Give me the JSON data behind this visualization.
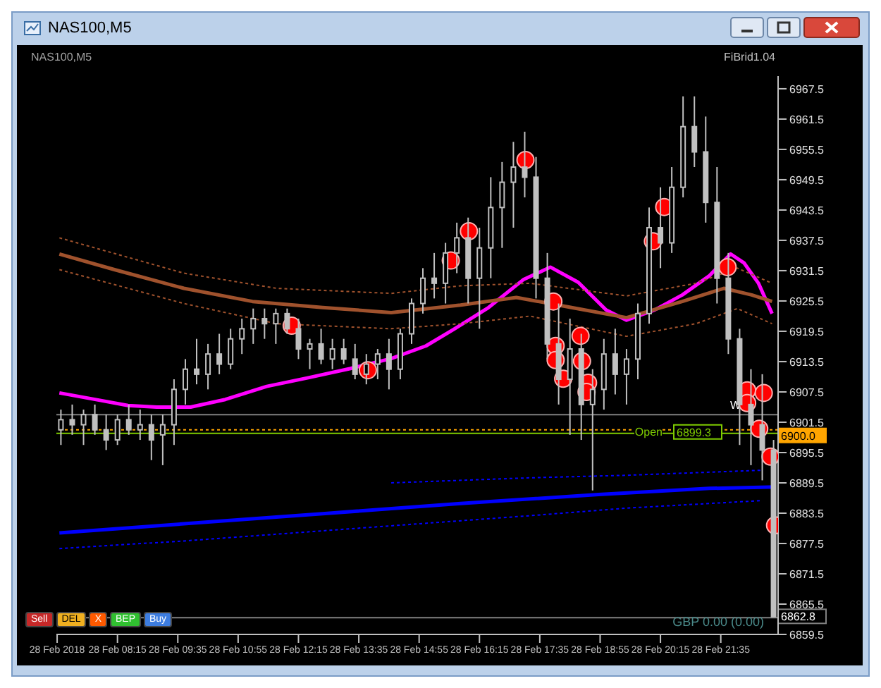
{
  "chart_data": {
    "type": "candlestick",
    "title": "NAS100,M5",
    "subtitle": "NAS100,M5",
    "annotations": [
      "FiBrid1.04",
      "Sell",
      "DEL",
      "X",
      "BEP",
      "Buy",
      "GBP 0.00 (0.00)",
      "Open"
    ],
    "color": "#c0c0c0",
    "x": [
      "2018-02-28T07:00",
      "2018-02-28T07:15",
      "2018-02-28T07:30",
      "2018-02-28T07:45",
      "2018-02-28T08:00",
      "2018-02-28T08:15",
      "2018-02-28T08:30",
      "2018-02-28T08:45",
      "2018-02-28T09:00",
      "2018-02-28T09:15",
      "2018-02-28T09:30",
      "2018-02-28T09:45",
      "2018-02-28T10:00",
      "2018-02-28T10:15",
      "2018-02-28T10:30",
      "2018-02-28T10:45",
      "2018-02-28T11:00",
      "2018-02-28T11:15",
      "2018-02-28T11:30",
      "2018-02-28T11:45",
      "2018-02-28T12:00",
      "2018-02-28T12:15",
      "2018-02-28T12:30",
      "2018-02-28T12:45",
      "2018-02-28T13:00",
      "2018-02-28T13:15",
      "2018-02-28T13:30",
      "2018-02-28T13:45",
      "2018-02-28T14:00",
      "2018-02-28T14:15",
      "2018-02-28T14:30",
      "2018-02-28T14:45",
      "2018-02-28T15:00",
      "2018-02-28T15:15",
      "2018-02-28T15:30",
      "2018-02-28T15:45",
      "2018-02-28T16:00",
      "2018-02-28T16:15",
      "2018-02-28T16:30",
      "2018-02-28T16:45",
      "2018-02-28T17:00",
      "2018-02-28T17:15",
      "2018-02-28T17:30",
      "2018-02-28T17:45",
      "2018-02-28T18:00",
      "2018-02-28T18:15",
      "2018-02-28T18:30",
      "2018-02-28T18:45",
      "2018-02-28T19:00",
      "2018-02-28T19:15",
      "2018-02-28T19:30",
      "2018-02-28T19:45",
      "2018-02-28T20:00",
      "2018-02-28T20:15",
      "2018-02-28T20:30",
      "2018-02-28T20:45",
      "2018-02-28T21:00",
      "2018-02-28T21:15",
      "2018-02-28T21:30",
      "2018-02-28T21:45",
      "2018-02-28T22:00",
      "2018-02-28T22:15",
      "2018-02-28T22:30",
      "2018-02-28T22:45"
    ],
    "ohlc": [
      [
        6900,
        6904,
        6897,
        6902
      ],
      [
        6902,
        6905,
        6899,
        6901
      ],
      [
        6901,
        6904,
        6897,
        6903
      ],
      [
        6903,
        6905,
        6899,
        6900
      ],
      [
        6900,
        6903,
        6896,
        6898
      ],
      [
        6898,
        6903,
        6897,
        6902
      ],
      [
        6902,
        6905,
        6899,
        6900
      ],
      [
        6900,
        6904,
        6898,
        6901
      ],
      [
        6901,
        6903,
        6894,
        6898
      ],
      [
        6899,
        6903,
        6893,
        6901
      ],
      [
        6901,
        6910,
        6897,
        6908
      ],
      [
        6908,
        6914,
        6905,
        6912
      ],
      [
        6912,
        6918,
        6909,
        6911
      ],
      [
        6911,
        6917,
        6908,
        6915
      ],
      [
        6915,
        6919,
        6911,
        6913
      ],
      [
        6913,
        6920,
        6912,
        6918
      ],
      [
        6918,
        6922,
        6915,
        6920
      ],
      [
        6920,
        6924,
        6917,
        6922
      ],
      [
        6922,
        6924,
        6918,
        6921
      ],
      [
        6921,
        6924,
        6917,
        6923
      ],
      [
        6923,
        6924,
        6919,
        6920
      ],
      [
        6920,
        6922,
        6914,
        6916
      ],
      [
        6916,
        6918,
        6912,
        6917
      ],
      [
        6917,
        6920,
        6913,
        6914
      ],
      [
        6914,
        6918,
        6912,
        6916
      ],
      [
        6916,
        6918,
        6913,
        6914
      ],
      [
        6914,
        6917,
        6910,
        6911
      ],
      [
        6911,
        6915,
        6909,
        6913
      ],
      [
        6913,
        6916,
        6910,
        6915
      ],
      [
        6915,
        6918,
        6908,
        6912
      ],
      [
        6912,
        6920,
        6910,
        6919
      ],
      [
        6919,
        6926,
        6917,
        6925
      ],
      [
        6925,
        6932,
        6923,
        6930
      ],
      [
        6930,
        6935,
        6926,
        6929
      ],
      [
        6929,
        6937,
        6925,
        6935
      ],
      [
        6935,
        6941,
        6931,
        6938
      ],
      [
        6938,
        6942,
        6925,
        6930
      ],
      [
        6930,
        6940,
        6920,
        6936
      ],
      [
        6936,
        6950,
        6930,
        6944
      ],
      [
        6944,
        6953,
        6936,
        6949
      ],
      [
        6949,
        6957,
        6940,
        6952
      ],
      [
        6952,
        6959,
        6946,
        6950
      ],
      [
        6950,
        6954,
        6926,
        6930
      ],
      [
        6930,
        6935,
        6914,
        6917
      ],
      [
        6917,
        6925,
        6905,
        6910
      ],
      [
        6910,
        6922,
        6899,
        6916
      ],
      [
        6916,
        6919,
        6898,
        6905
      ],
      [
        6905,
        6912,
        6888,
        6908
      ],
      [
        6908,
        6918,
        6904,
        6915
      ],
      [
        6915,
        6920,
        6907,
        6911
      ],
      [
        6911,
        6916,
        6905,
        6914
      ],
      [
        6914,
        6925,
        6910,
        6923
      ],
      [
        6923,
        6944,
        6921,
        6940
      ],
      [
        6940,
        6948,
        6932,
        6937
      ],
      [
        6937,
        6952,
        6935,
        6948
      ],
      [
        6948,
        6966,
        6946,
        6960
      ],
      [
        6960,
        6966,
        6952,
        6955
      ],
      [
        6955,
        6962,
        6941,
        6945
      ],
      [
        6945,
        6952,
        6925,
        6930
      ],
      [
        6930,
        6935,
        6915,
        6918
      ],
      [
        6918,
        6920,
        6897,
        6905
      ],
      [
        6905,
        6912,
        6893,
        6901
      ],
      [
        6901,
        6911,
        6890,
        6896
      ],
      [
        6896,
        6898,
        6863,
        6863
      ]
    ],
    "series": [
      {
        "type": "line",
        "line_style": "solid",
        "marker": "none",
        "color": "#ff00ff",
        "x": [
          "2018-02-28T06:58",
          "2018-02-28T07:53",
          "2018-02-28T08:29",
          "2018-02-28T09:07",
          "2018-02-28T09:52",
          "2018-02-28T10:38",
          "2018-02-28T11:33",
          "2018-02-28T12:28",
          "2018-02-28T13:23",
          "2018-02-28T14:18",
          "2018-02-28T15:04",
          "2018-02-28T15:41",
          "2018-02-28T16:27",
          "2018-02-28T17:13",
          "2018-02-28T17:49",
          "2018-02-28T18:26",
          "2018-02-28T19:03",
          "2018-02-28T19:30",
          "2018-02-28T20:07",
          "2018-02-28T20:44",
          "2018-02-28T21:20",
          "2018-02-28T21:48",
          "2018-02-28T22:06",
          "2018-02-28T22:25",
          "2018-02-28T22:43"
        ],
        "values": [
          6907.3,
          6905.8,
          6904.8,
          6904.5,
          6904.5,
          6906,
          6908.6,
          6910.3,
          6912.1,
          6914.1,
          6916.6,
          6919.9,
          6924.2,
          6929.7,
          6932.2,
          6929.2,
          6923.7,
          6921.7,
          6923.7,
          6926.7,
          6930.5,
          6934.8,
          6933,
          6929,
          6923
        ]
      },
      {
        "type": "line",
        "line_style": "solid",
        "marker": "none",
        "color": "#a0522d",
        "x": [
          "2018-02-28T06:58",
          "2018-02-28T08:11",
          "2018-02-28T09:43",
          "2018-02-28T11:14",
          "2018-02-28T12:47",
          "2018-02-28T14:18",
          "2018-02-28T15:50",
          "2018-02-28T17:04",
          "2018-02-28T18:17",
          "2018-02-28T19:30",
          "2018-02-28T20:44",
          "2018-02-28T21:39",
          "2018-02-28T22:16",
          "2018-02-28T22:43"
        ],
        "values": [
          6934.8,
          6931.7,
          6928,
          6925.4,
          6924.2,
          6923.2,
          6924.7,
          6926.2,
          6924.2,
          6922.2,
          6925.4,
          6928,
          6926.7,
          6925.4
        ]
      },
      {
        "type": "line",
        "line_style": "dotted",
        "marker": "none",
        "color": "#a0522d",
        "x": [
          "2018-02-28T06:58",
          "2018-02-28T09:43",
          "2018-02-28T11:46",
          "2018-02-28T14:18",
          "2018-02-28T15:50",
          "2018-02-28T17:22",
          "2018-02-28T19:30",
          "2018-02-28T21:02",
          "2018-02-28T21:57",
          "2018-02-28T22:43"
        ],
        "values": [
          6938,
          6931,
          6928,
          6927,
          6928.5,
          6929,
          6926.5,
          6929,
          6932,
          6929
        ]
      },
      {
        "type": "line",
        "line_style": "dotted",
        "marker": "none",
        "color": "#a0522d",
        "x": [
          "2018-02-28T06:58",
          "2018-02-28T09:43",
          "2018-02-28T11:46",
          "2018-02-28T14:18",
          "2018-02-28T15:50",
          "2018-02-28T17:22",
          "2018-02-28T19:30",
          "2018-02-28T21:02",
          "2018-02-28T21:57",
          "2018-02-28T22:43"
        ],
        "values": [
          6931.7,
          6925,
          6921,
          6920,
          6921,
          6922.5,
          6918.5,
          6921,
          6924,
          6921
        ]
      },
      {
        "type": "line",
        "line_style": "solid",
        "marker": "none",
        "color": "#0000ff",
        "x": [
          "2018-02-28T06:58",
          "2018-02-28T09:43",
          "2018-02-28T12:47",
          "2018-02-28T15:50",
          "2018-02-28T18:53",
          "2018-02-28T21:20",
          "2018-02-28T22:48"
        ],
        "values": [
          6879.6,
          6881.4,
          6883.4,
          6885.4,
          6887.2,
          6888.4,
          6888.7
        ]
      },
      {
        "type": "line",
        "line_style": "dotted",
        "marker": "none",
        "color": "#0000ff",
        "x": [
          "2018-02-28T14:18",
          "2018-02-28T17:22",
          "2018-02-28T19:30",
          "2018-02-28T22:30"
        ],
        "values": [
          6889.5,
          6890.5,
          6891,
          6892
        ]
      },
      {
        "type": "line",
        "line_style": "dotted",
        "marker": "none",
        "color": "#0000ff",
        "x": [
          "2018-02-28T06:58",
          "2018-02-28T09:43",
          "2018-02-28T14:18",
          "2018-02-28T17:22",
          "2018-02-28T19:30",
          "2018-02-28T22:30"
        ],
        "values": [
          6876.5,
          6878,
          6881,
          6883,
          6884.5,
          6886
        ]
      },
      {
        "type": "scatter",
        "marker": "circle",
        "color": "#ff0000",
        "x": [
          "2018-02-28T12:06",
          "2018-02-28T13:47",
          "2018-02-28T15:37",
          "2018-02-28T16:01",
          "2018-02-28T17:16",
          "2018-02-28T17:53",
          "2018-02-28T17:56",
          "2018-02-28T17:56",
          "2018-02-28T18:06",
          "2018-02-28T18:29",
          "2018-02-28T18:31",
          "2018-02-28T18:39",
          "2018-02-28T18:37",
          "2018-02-28T20:05",
          "2018-02-28T20:20",
          "2018-02-28T21:44",
          "2018-02-28T22:10",
          "2018-02-28T22:10",
          "2018-02-28T22:32",
          "2018-02-28T22:26",
          "2018-02-28T22:41",
          "2018-02-28T22:47"
        ],
        "values": [
          6920.6,
          6911.8,
          6933.5,
          6939.3,
          6953.4,
          6925.4,
          6916.6,
          6913.8,
          6910.1,
          6918.6,
          6913.6,
          6909.3,
          6907.5,
          6937.3,
          6944.1,
          6932.2,
          6907.8,
          6905.3,
          6907.3,
          6900.2,
          6894.7,
          6881.1
        ]
      }
    ],
    "ref_lines": [
      {
        "axis": "y",
        "value": 6903,
        "label": "W",
        "color": "#808080",
        "line_style": "solid"
      },
      {
        "axis": "y",
        "value": 6900.0,
        "label": "6900.0",
        "color": "#ffa500",
        "line_style": "dotted"
      },
      {
        "axis": "y",
        "value": 6899.3,
        "label": "6899.3",
        "color": "#7fcc00",
        "line_style": "solid"
      },
      {
        "axis": "y",
        "value": 6862.8,
        "label": "6862.8",
        "color": "#808080",
        "line_style": "solid"
      }
    ],
    "xlim": [
      "2018-02-28T06:54",
      "2018-02-28T22:51"
    ],
    "xticks": [
      {
        "value": "2018-02-28T06:55",
        "label": "28 Feb 2018"
      },
      {
        "value": "2018-02-28T08:15",
        "label": "28 Feb 08:15"
      },
      {
        "value": "2018-02-28T09:35",
        "label": "28 Feb 09:35"
      },
      {
        "value": "2018-02-28T10:55",
        "label": "28 Feb 10:55"
      },
      {
        "value": "2018-02-28T12:15",
        "label": "28 Feb 12:15"
      },
      {
        "value": "2018-02-28T13:35",
        "label": "28 Feb 13:35"
      },
      {
        "value": "2018-02-28T14:55",
        "label": "28 Feb 14:55"
      },
      {
        "value": "2018-02-28T16:15",
        "label": "28 Feb 16:15"
      },
      {
        "value": "2018-02-28T17:35",
        "label": "28 Feb 17:35"
      },
      {
        "value": "2018-02-28T18:55",
        "label": "28 Feb 18:55"
      },
      {
        "value": "2018-02-28T20:15",
        "label": "28 Feb 20:15"
      },
      {
        "value": "2018-02-28T21:35",
        "label": "28 Feb 21:35"
      }
    ],
    "ylim": [
      6859.5,
      6970
    ],
    "yticks": [
      6859.5,
      6865.5,
      6871.5,
      6877.5,
      6883.5,
      6889.5,
      6895.5,
      6901.5,
      6907.5,
      6913.5,
      6919.5,
      6925.5,
      6931.5,
      6937.5,
      6943.5,
      6949.5,
      6955.5,
      6961.5,
      6967.5
    ]
  }
}
